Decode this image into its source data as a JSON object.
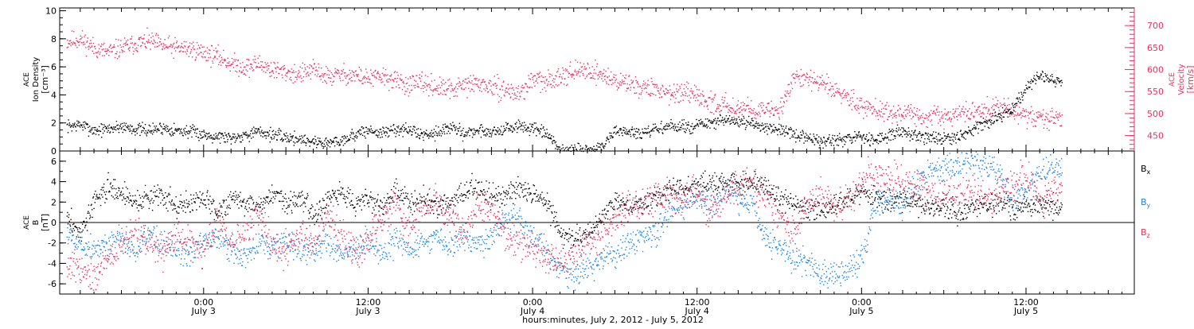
{
  "colors": {
    "black": "#000000",
    "pink": "#e8325f",
    "blue": "#1a86e0",
    "axis": "#000000"
  },
  "x_axis": {
    "label": "hours:minutes, July  2, 2012 - July  5, 2012",
    "ticks": [
      {
        "time": "0:00",
        "date": "July 3",
        "hours": 0
      },
      {
        "time": "12:00",
        "date": "July 3",
        "hours": 12
      },
      {
        "time": "0:00",
        "date": "July 4",
        "hours": 24
      },
      {
        "time": "12:00",
        "date": "July 4",
        "hours": 36
      },
      {
        "time": "0:00",
        "date": "July 5",
        "hours": 48
      },
      {
        "time": "12:00",
        "date": "July 5",
        "hours": 60
      }
    ],
    "range_hours": [
      -10.5,
      67.9
    ]
  },
  "chart_data": [
    {
      "type": "scatter",
      "panel": "top",
      "left_axis": {
        "label_lines": [
          "ACE",
          "Ion Density",
          "[cm⁻³]"
        ],
        "ylim": [
          0,
          10.2
        ],
        "ticks": [
          0,
          2,
          4,
          6,
          8,
          10
        ]
      },
      "right_axis": {
        "label_lines": [
          "ACE",
          "Velocity",
          "[km/s]"
        ],
        "ylim": [
          415,
          740
        ],
        "ticks": [
          450,
          500,
          550,
          600,
          650,
          700
        ]
      },
      "series": [
        {
          "color": "#000000",
          "axis": "left",
          "hours": [
            -10,
            -9,
            -8,
            -7,
            -6,
            -5,
            -4,
            -3,
            -2,
            -1,
            0,
            1,
            2,
            3,
            4,
            5,
            6,
            7,
            8,
            9,
            10,
            11,
            12,
            13,
            14,
            15,
            16,
            17,
            18,
            19,
            20,
            21,
            22,
            23,
            24,
            25,
            26,
            27,
            28,
            29,
            30,
            31,
            32,
            33,
            34,
            35,
            36,
            37,
            38,
            39,
            40,
            41,
            42,
            43,
            44,
            45,
            46,
            47,
            48,
            49,
            50,
            51,
            52,
            53,
            54,
            55,
            56,
            57,
            58,
            59,
            60,
            61,
            62
          ],
          "values": [
            1.8,
            1.9,
            1.5,
            1.6,
            1.8,
            1.6,
            1.5,
            1.7,
            1.5,
            1.4,
            1.2,
            1.1,
            1.0,
            1.2,
            1.4,
            1.2,
            1.0,
            0.9,
            0.7,
            0.6,
            0.8,
            1.2,
            1.5,
            1.3,
            1.6,
            1.5,
            1.2,
            1.4,
            1.7,
            1.3,
            1.5,
            1.4,
            1.6,
            1.8,
            1.6,
            1.2,
            0.1,
            0.05,
            0.1,
            0.3,
            1.5,
            1.4,
            1.2,
            1.6,
            1.8,
            1.7,
            1.9,
            2.0,
            2.2,
            2.1,
            1.9,
            1.8,
            1.5,
            1.2,
            0.9,
            0.8,
            0.7,
            0.9,
            1.0,
            0.8,
            1.2,
            1.4,
            1.2,
            1.0,
            0.8,
            1.1,
            1.5,
            2.0,
            2.5,
            3.0,
            4.5,
            5.5,
            5.0
          ]
        },
        {
          "color": "#e8325f",
          "axis": "right",
          "hours": [
            -10,
            -9,
            -8,
            -7,
            -6,
            -5,
            -4,
            -3,
            -2,
            -1,
            0,
            1,
            2,
            3,
            4,
            5,
            6,
            7,
            8,
            9,
            10,
            11,
            12,
            13,
            14,
            15,
            16,
            17,
            18,
            19,
            20,
            21,
            22,
            23,
            24,
            25,
            26,
            27,
            28,
            29,
            30,
            31,
            32,
            33,
            34,
            35,
            36,
            37,
            38,
            39,
            40,
            41,
            42,
            43,
            44,
            45,
            46,
            47,
            48,
            49,
            50,
            51,
            52,
            53,
            54,
            55,
            56,
            57,
            58,
            59,
            60,
            61,
            62
          ],
          "values": [
            665,
            670,
            650,
            640,
            650,
            660,
            665,
            655,
            650,
            648,
            640,
            630,
            615,
            605,
            615,
            600,
            595,
            590,
            600,
            585,
            590,
            588,
            580,
            585,
            575,
            565,
            570,
            560,
            555,
            565,
            570,
            560,
            555,
            545,
            580,
            570,
            590,
            595,
            600,
            590,
            575,
            570,
            560,
            555,
            550,
            545,
            540,
            525,
            520,
            515,
            512,
            505,
            510,
            585,
            580,
            570,
            555,
            540,
            520,
            510,
            505,
            500,
            495,
            490,
            495,
            500,
            505,
            510,
            515,
            505,
            495,
            490,
            490
          ]
        }
      ]
    },
    {
      "type": "scatter",
      "panel": "bottom",
      "left_axis": {
        "label_lines": [
          "ACE",
          "B",
          "[nT]"
        ],
        "ylim": [
          -7,
          7
        ],
        "ticks": [
          -6,
          -4,
          -2,
          0,
          2,
          4,
          6
        ]
      },
      "series": [
        {
          "name": "B_x",
          "color": "#000000",
          "hours": [
            -10,
            -9,
            -8,
            -7,
            -6,
            -5,
            -4,
            -3,
            -2,
            -1,
            0,
            1,
            2,
            3,
            4,
            5,
            6,
            7,
            8,
            9,
            10,
            11,
            12,
            13,
            14,
            15,
            16,
            17,
            18,
            19,
            20,
            21,
            22,
            23,
            24,
            25,
            26,
            27,
            28,
            29,
            30,
            31,
            32,
            33,
            34,
            35,
            36,
            37,
            38,
            39,
            40,
            41,
            42,
            43,
            44,
            45,
            46,
            47,
            48,
            49,
            50,
            51,
            52,
            53,
            54,
            55,
            56,
            57,
            58,
            59,
            60,
            61,
            62
          ],
          "values": [
            0.5,
            -1.0,
            2.0,
            3.5,
            3.0,
            2.0,
            2.5,
            3.0,
            1.5,
            2.0,
            2.5,
            1.0,
            2.5,
            2.0,
            1.5,
            3.0,
            2.0,
            2.5,
            1.0,
            2.0,
            3.0,
            2.0,
            2.5,
            1.5,
            3.0,
            2.0,
            2.5,
            1.5,
            2.0,
            3.0,
            3.5,
            2.5,
            3.0,
            3.5,
            3.0,
            2.0,
            -1.0,
            -1.5,
            -1.0,
            0.5,
            2.0,
            1.5,
            2.0,
            2.5,
            3.5,
            3.0,
            3.5,
            4.0,
            4.0,
            3.8,
            4.0,
            3.5,
            2.5,
            2.0,
            1.5,
            1.0,
            2.0,
            2.5,
            3.0,
            2.5,
            2.0,
            2.5,
            2.0,
            1.5,
            1.5,
            1.0,
            1.5,
            1.8,
            2.0,
            1.5,
            1.5,
            2.0,
            1.5
          ]
        },
        {
          "name": "B_y",
          "color": "#1a86e0",
          "hours": [
            -10,
            -9,
            -8,
            -7,
            -6,
            -5,
            -4,
            -3,
            -2,
            -1,
            0,
            1,
            2,
            3,
            4,
            5,
            6,
            7,
            8,
            9,
            10,
            11,
            12,
            13,
            14,
            15,
            16,
            17,
            18,
            19,
            20,
            21,
            22,
            23,
            24,
            25,
            26,
            27,
            28,
            29,
            30,
            31,
            32,
            33,
            34,
            35,
            36,
            37,
            38,
            39,
            40,
            41,
            42,
            43,
            44,
            45,
            46,
            47,
            48,
            49,
            50,
            51,
            52,
            53,
            54,
            55,
            56,
            57,
            58,
            59,
            60,
            61,
            62
          ],
          "values": [
            -1.0,
            -2.0,
            -2.5,
            -2.0,
            -1.5,
            -3.0,
            -1.0,
            -2.0,
            -2.5,
            -3.0,
            -2.0,
            -1.5,
            -2.5,
            -3.5,
            -2.0,
            -2.5,
            -1.5,
            -3.0,
            -2.5,
            -2.0,
            -3.0,
            -2.5,
            -2.0,
            -3.0,
            -1.5,
            -2.5,
            -2.0,
            -1.5,
            -2.5,
            -1.0,
            -2.0,
            -1.5,
            1.0,
            0.5,
            -1.5,
            -3.0,
            -4.5,
            -5.0,
            -4.5,
            -3.5,
            -3.0,
            -2.0,
            -1.5,
            -1.0,
            1.0,
            1.5,
            2.5,
            2.0,
            3.0,
            2.5,
            2.0,
            -1.5,
            -2.5,
            -3.5,
            -4.0,
            -5.0,
            -5.0,
            -4.5,
            -3.5,
            2.0,
            2.5,
            1.5,
            4.0,
            5.0,
            5.5,
            5.8,
            6.0,
            5.5,
            5.0,
            2.0,
            3.0,
            5.0,
            5.5
          ]
        },
        {
          "name": "B_z",
          "color": "#e8325f",
          "hours": [
            -10,
            -9,
            -8,
            -7,
            -6,
            -5,
            -4,
            -3,
            -2,
            -1,
            0,
            1,
            2,
            3,
            4,
            5,
            6,
            7,
            8,
            9,
            10,
            11,
            12,
            13,
            14,
            15,
            16,
            17,
            18,
            19,
            20,
            21,
            22,
            23,
            24,
            25,
            26,
            27,
            28,
            29,
            30,
            31,
            32,
            33,
            34,
            35,
            36,
            37,
            38,
            39,
            40,
            41,
            42,
            43,
            44,
            45,
            46,
            47,
            48,
            49,
            50,
            51,
            52,
            53,
            54,
            55,
            56,
            57,
            58,
            59,
            60,
            61,
            62
          ],
          "values": [
            -4.0,
            -4.5,
            -5.0,
            -3.5,
            -2.0,
            -1.0,
            -2.0,
            -3.0,
            -1.0,
            -2.0,
            -3.0,
            0.5,
            -2.0,
            -1.0,
            1.0,
            -2.5,
            -3.0,
            -1.0,
            -2.0,
            1.0,
            -1.5,
            -3.0,
            -2.0,
            0.5,
            2.0,
            -1.0,
            1.5,
            2.5,
            0.5,
            -1.0,
            2.0,
            1.5,
            -1.0,
            -2.0,
            -2.5,
            -3.5,
            -4.0,
            -3.0,
            -2.0,
            -1.0,
            0.5,
            1.5,
            2.0,
            2.5,
            3.0,
            2.5,
            3.0,
            1.0,
            3.0,
            3.5,
            4.0,
            2.5,
            1.0,
            -1.0,
            2.0,
            3.0,
            1.5,
            2.5,
            4.0,
            4.5,
            4.0,
            4.5,
            3.5,
            2.5,
            3.0,
            2.5,
            3.0,
            2.5,
            3.0,
            4.0,
            4.5,
            2.0,
            3.5
          ]
        }
      ],
      "legend": [
        {
          "label": "B",
          "sub": "x",
          "color": "#000000"
        },
        {
          "label": "B",
          "sub": "y",
          "color": "#1a86e0"
        },
        {
          "label": "B",
          "sub": "z",
          "color": "#e8325f"
        }
      ],
      "zero_line": true
    }
  ]
}
